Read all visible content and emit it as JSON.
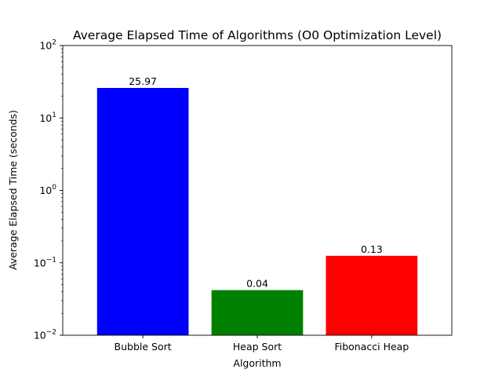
{
  "chart_data": {
    "type": "bar",
    "title": "Average Elapsed Time of Algorithms (O0 Optimization Level)",
    "xlabel": "Algorithm",
    "ylabel": "Average Elapsed Time (seconds)",
    "categories": [
      "Bubble Sort",
      "Heap Sort",
      "Fibonacci Heap"
    ],
    "values": [
      25.97,
      0.042,
      0.125
    ],
    "data_labels": [
      "25.97",
      "0.04",
      "0.13"
    ],
    "colors": [
      "#0000ff",
      "#008000",
      "#ff0000"
    ],
    "y_scale": "log",
    "ylim": [
      0.01,
      100
    ],
    "y_major_ticks": [
      {
        "base": "10",
        "exp": "−2",
        "value": 0.01
      },
      {
        "base": "10",
        "exp": "−1",
        "value": 0.1
      },
      {
        "base": "10",
        "exp": "0",
        "value": 1
      },
      {
        "base": "10",
        "exp": "1",
        "value": 10
      },
      {
        "base": "10",
        "exp": "2",
        "value": 100
      }
    ],
    "grid": false,
    "legend": "none"
  }
}
